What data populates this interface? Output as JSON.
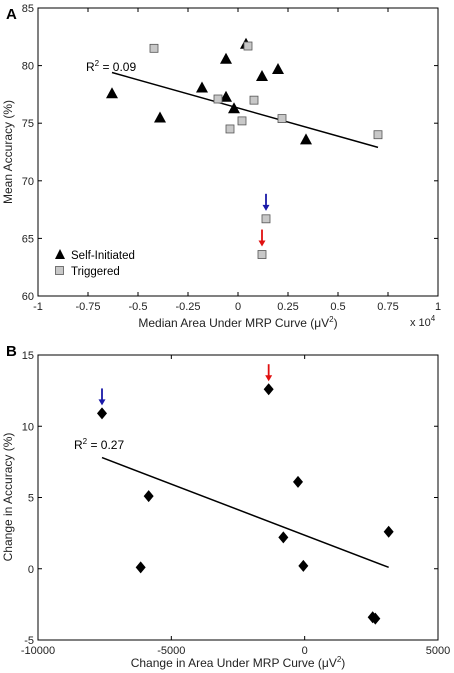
{
  "chart_data": [
    {
      "panel_label": "A",
      "type": "scatter",
      "xlabel_main": "Median Area Under MRP Curve (μV",
      "xlabel_sup": "2",
      "xlabel_tail": ")",
      "x_multiplier_label": "x 10",
      "x_multiplier_exp": "4",
      "ylabel": "Mean Accuracy (%)",
      "xlim": [
        -1,
        1
      ],
      "ylim": [
        60,
        85
      ],
      "xticks": [
        -1,
        -0.75,
        -0.5,
        -0.25,
        0,
        0.25,
        0.5,
        0.75,
        1
      ],
      "xtick_labels": [
        "-1",
        "-0.75",
        "-0.5",
        "-0.25",
        "0",
        "0.25",
        "0.5",
        "0.75",
        "1"
      ],
      "yticks": [
        60,
        65,
        70,
        75,
        80,
        85
      ],
      "ytick_labels": [
        "60",
        "65",
        "70",
        "75",
        "80",
        "85"
      ],
      "grid": false,
      "legend_position": "bottom-left",
      "series": [
        {
          "name": "Self-Initiated",
          "marker": "triangle",
          "color": "#000000",
          "points": [
            {
              "x": -0.63,
              "y": 77.6
            },
            {
              "x": -0.39,
              "y": 75.5
            },
            {
              "x": -0.18,
              "y": 78.1
            },
            {
              "x": -0.06,
              "y": 80.6
            },
            {
              "x": -0.06,
              "y": 77.3
            },
            {
              "x": -0.02,
              "y": 76.3
            },
            {
              "x": 0.04,
              "y": 81.9
            },
            {
              "x": 0.12,
              "y": 79.1
            },
            {
              "x": 0.2,
              "y": 79.7
            },
            {
              "x": 0.34,
              "y": 73.6
            }
          ]
        },
        {
          "name": "Triggered",
          "marker": "square",
          "color": "#c8c8c8",
          "points": [
            {
              "x": -0.42,
              "y": 81.5
            },
            {
              "x": -0.1,
              "y": 77.1
            },
            {
              "x": -0.04,
              "y": 74.5
            },
            {
              "x": 0.02,
              "y": 75.2
            },
            {
              "x": 0.05,
              "y": 81.7
            },
            {
              "x": 0.08,
              "y": 77.0
            },
            {
              "x": 0.22,
              "y": 75.4
            },
            {
              "x": 0.7,
              "y": 74.0
            },
            {
              "x": 0.14,
              "y": 66.7
            },
            {
              "x": 0.12,
              "y": 63.6
            }
          ]
        }
      ],
      "fit_line": {
        "x": [
          -0.63,
          0.7
        ],
        "y": [
          79.4,
          72.9
        ]
      },
      "r2_label_main": "R",
      "r2_label_sup": "2",
      "r2_label_tail": " = 0.09",
      "arrows": [
        {
          "x": 0.14,
          "y": 66.7,
          "color": "#1a1aa8"
        },
        {
          "x": 0.12,
          "y": 63.6,
          "color": "#e01010"
        }
      ]
    },
    {
      "panel_label": "B",
      "type": "scatter",
      "xlabel_main": "Change in Area Under MRP Curve (μV",
      "xlabel_sup": "2",
      "xlabel_tail": ")",
      "ylabel": "Change in Accuracy (%)",
      "xlim": [
        -10000,
        5000
      ],
      "ylim": [
        -5,
        15
      ],
      "xticks": [
        -10000,
        -5000,
        0,
        5000
      ],
      "xtick_labels": [
        "-10000",
        "-5000",
        "0",
        "5000"
      ],
      "yticks": [
        -5,
        0,
        5,
        10,
        15
      ],
      "ytick_labels": [
        "-5",
        "0",
        "5",
        "10",
        "15"
      ],
      "grid": false,
      "series": [
        {
          "marker": "diamond",
          "color": "#000000",
          "points": [
            {
              "x": -7600,
              "y": 10.9
            },
            {
              "x": -1350,
              "y": 12.6
            },
            {
              "x": -5850,
              "y": 5.1
            },
            {
              "x": -6150,
              "y": 0.1
            },
            {
              "x": -250,
              "y": 6.1
            },
            {
              "x": -800,
              "y": 2.2
            },
            {
              "x": -50,
              "y": 0.2
            },
            {
              "x": 2550,
              "y": -3.4
            },
            {
              "x": 2650,
              "y": -3.5
            },
            {
              "x": 3150,
              "y": 2.6
            }
          ]
        }
      ],
      "fit_line": {
        "x": [
          -7600,
          3150
        ],
        "y": [
          7.8,
          0.1
        ]
      },
      "r2_label_main": "R",
      "r2_label_sup": "2",
      "r2_label_tail": " = 0.27",
      "arrows": [
        {
          "x": -7600,
          "y": 10.9,
          "color": "#1a1aa8"
        },
        {
          "x": -1350,
          "y": 12.6,
          "color": "#e01010"
        }
      ]
    }
  ]
}
